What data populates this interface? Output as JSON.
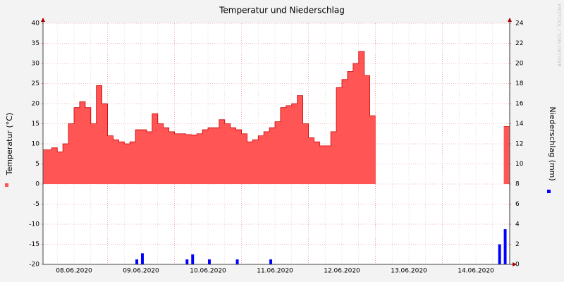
{
  "chart_data": {
    "type": "area",
    "title": "Temperatur und Niederschlag",
    "watermark": "RRDTOOL / TOBI OETIKER",
    "categories": [
      null,
      null,
      null,
      null,
      null,
      null,
      "08.06.2020",
      null,
      null,
      null,
      null,
      null,
      null,
      null,
      null,
      null,
      null,
      null,
      "09.06.2020",
      null,
      null,
      null,
      null,
      null,
      null,
      null,
      null,
      null,
      null,
      null,
      "10.06.2020",
      null,
      null,
      null,
      null,
      null,
      null,
      null,
      null,
      null,
      null,
      null,
      "11.06.2020",
      null,
      null,
      null,
      null,
      null,
      null,
      null,
      null,
      null,
      null,
      null,
      "12.06.2020",
      null,
      null,
      null,
      null,
      null,
      null,
      null,
      null,
      null,
      null,
      null,
      "13.06.2020",
      null,
      null,
      null,
      null,
      null,
      null,
      null,
      null,
      null,
      null,
      null,
      "14.06.2020",
      null,
      null,
      null,
      null,
      null
    ],
    "series": [
      {
        "name": "Temperatur (°C)",
        "type": "area",
        "color": "#ff5555",
        "line_color": "#cc0000",
        "values": [
          8.5,
          8.5,
          9,
          8,
          10,
          15,
          19,
          20.5,
          19,
          15,
          24.5,
          20,
          12,
          11,
          10.5,
          10,
          10.5,
          13.5,
          13.5,
          13,
          17.5,
          15,
          14,
          13,
          12.5,
          12.5,
          12.3,
          12.2,
          12.5,
          13.5,
          14,
          14,
          16,
          15,
          14,
          13.5,
          12.5,
          10.5,
          11,
          12,
          13,
          14,
          15.5,
          19,
          19.5,
          20,
          22,
          15,
          11.5,
          10.5,
          9.5,
          9.5,
          13,
          24,
          26,
          28,
          30,
          33,
          27,
          17,
          null,
          null,
          null,
          null,
          null,
          null,
          null,
          null,
          null,
          null,
          null,
          null,
          null,
          null,
          null,
          null,
          null,
          null,
          null,
          null,
          null,
          null,
          null,
          14.3
        ]
      },
      {
        "name": "Niederschlag (mm)",
        "type": "bar",
        "axis": "y2",
        "color": "#0000ff",
        "values": [
          0,
          0,
          0,
          0,
          0,
          0,
          0,
          0,
          0,
          0,
          0,
          0,
          0,
          0,
          0,
          0,
          0,
          0.5,
          1.1,
          0,
          0,
          0,
          0,
          0,
          0,
          0,
          0.5,
          1.0,
          0,
          0,
          0.5,
          0,
          0,
          0,
          0,
          0.5,
          0,
          0,
          0,
          0,
          0,
          0.5,
          0,
          0,
          0,
          0,
          0,
          0,
          0,
          0,
          0,
          0,
          0,
          0,
          0,
          0,
          0,
          0,
          0,
          0,
          0,
          0,
          0,
          0,
          0,
          0,
          0,
          0,
          0,
          0,
          0,
          0,
          0,
          0,
          0,
          0,
          0,
          0,
          0,
          0,
          0,
          0,
          2,
          3.5
        ]
      }
    ],
    "ylim": [
      -20,
      40
    ],
    "yticks": [
      -20,
      -15,
      -10,
      -5,
      0,
      5,
      10,
      15,
      20,
      25,
      30,
      35,
      40
    ],
    "y2lim": [
      0,
      24
    ],
    "y2ticks": [
      0,
      2,
      4,
      6,
      8,
      10,
      12,
      14,
      16,
      18,
      20,
      22,
      24
    ],
    "grid": true
  }
}
